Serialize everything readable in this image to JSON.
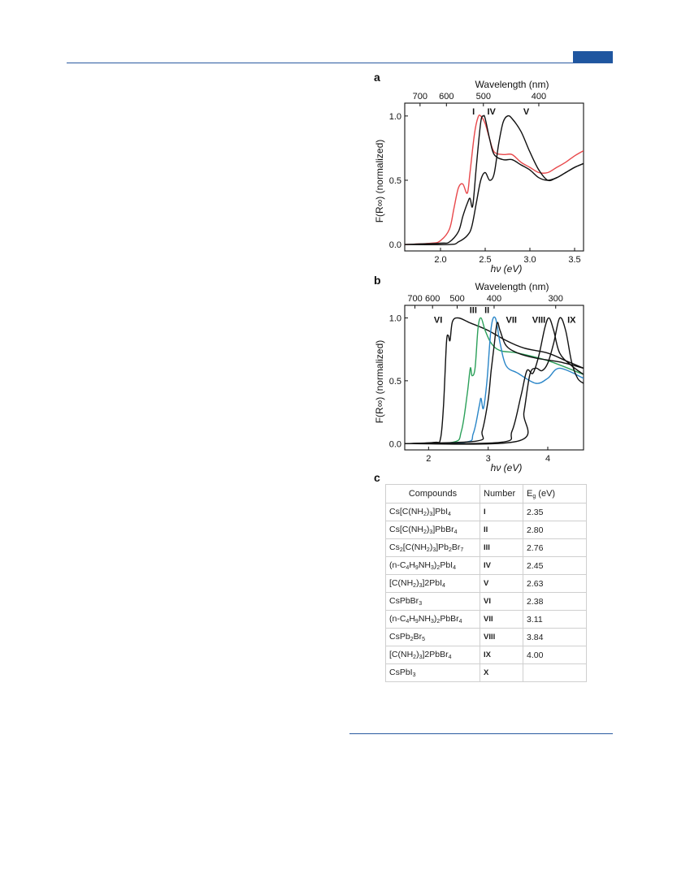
{
  "figure": {
    "panel_a": {
      "letter": "a",
      "top_axis_label": "Wavelength (nm)",
      "top_ticks": [
        "700",
        "600",
        "500",
        "400"
      ],
      "ylabel": "F(R∞) (normalized)",
      "xlabel": "hν (eV)",
      "x_ticks": [
        "2.0",
        "2.5",
        "3.0",
        "3.5"
      ],
      "y_ticks": [
        "0.0",
        "0.5",
        "1.0"
      ],
      "curve_labels": [
        "I",
        "IV",
        "V"
      ]
    },
    "panel_b": {
      "letter": "b",
      "top_axis_label": "Wavelength (nm)",
      "top_ticks": [
        "700",
        "600",
        "500",
        "400",
        "300"
      ],
      "ylabel": "F(R∞) (normalized)",
      "xlabel": "hν (eV)",
      "x_ticks": [
        "2",
        "3",
        "4"
      ],
      "y_ticks": [
        "0.0",
        "0.5",
        "1.0"
      ],
      "curve_labels": [
        "VI",
        "III",
        "II",
        "VII",
        "VIII",
        "IX"
      ]
    },
    "panel_c": {
      "letter": "c",
      "headers": [
        "Compounds",
        "Number",
        "E_g (eV)"
      ],
      "rows": [
        {
          "compound": "Cs[C(NH2)3]PbI4",
          "number": "I",
          "eg": "2.35"
        },
        {
          "compound": "Cs[C(NH2)3]PbBr4",
          "number": "II",
          "eg": "2.80"
        },
        {
          "compound": "Cs2[C(NH2)3]Pb2Br7",
          "number": "III",
          "eg": "2.76"
        },
        {
          "compound": "(n-C4H9NH3)2PbI4",
          "number": "IV",
          "eg": "2.45"
        },
        {
          "compound": "[C(NH2)3]2PbI4",
          "number": "V",
          "eg": "2.63"
        },
        {
          "compound": "CsPbBr3",
          "number": "VI",
          "eg": "2.38"
        },
        {
          "compound": "(n-C4H9NH3)2PbBr4",
          "number": "VII",
          "eg": "3.11"
        },
        {
          "compound": "CsPb2Br5",
          "number": "VIII",
          "eg": "3.84"
        },
        {
          "compound": "[C(NH2)3]2PbBr4",
          "number": "IX",
          "eg": "4.00"
        },
        {
          "compound": "CsPbI3",
          "number": "X",
          "eg": ""
        }
      ]
    }
  },
  "chart_data": [
    {
      "type": "line",
      "panel": "a",
      "xlabel": "hν (eV)",
      "ylabel": "F(R∞) (normalized)",
      "xlim": [
        1.6,
        3.6
      ],
      "ylim": [
        -0.05,
        1.1
      ],
      "top_axis": {
        "label": "Wavelength (nm)",
        "ticks_nm": [
          700,
          600,
          500,
          400
        ]
      },
      "series": [
        {
          "name": "I",
          "color": "#e8484b",
          "x": [
            1.6,
            1.9,
            2.0,
            2.1,
            2.15,
            2.2,
            2.25,
            2.3,
            2.33,
            2.38,
            2.42,
            2.45,
            2.5,
            2.55,
            2.6,
            2.7,
            2.8,
            2.9,
            3.0,
            3.1,
            3.2,
            3.3,
            3.4,
            3.5,
            3.6
          ],
          "y": [
            0.0,
            0.01,
            0.03,
            0.12,
            0.28,
            0.44,
            0.47,
            0.4,
            0.56,
            0.86,
            0.99,
            1.0,
            0.94,
            0.82,
            0.72,
            0.7,
            0.7,
            0.64,
            0.6,
            0.56,
            0.56,
            0.6,
            0.64,
            0.69,
            0.73
          ]
        },
        {
          "name": "IV",
          "color": "#111111",
          "x": [
            1.6,
            2.0,
            2.1,
            2.2,
            2.25,
            2.3,
            2.33,
            2.36,
            2.4,
            2.45,
            2.48,
            2.5,
            2.55,
            2.6,
            2.7,
            2.8,
            2.9,
            3.0,
            3.1,
            3.2,
            3.3,
            3.4,
            3.5,
            3.6
          ],
          "y": [
            0.0,
            0.01,
            0.02,
            0.1,
            0.22,
            0.32,
            0.36,
            0.3,
            0.6,
            0.95,
            1.0,
            0.98,
            0.82,
            0.7,
            0.66,
            0.66,
            0.62,
            0.58,
            0.52,
            0.5,
            0.52,
            0.56,
            0.6,
            0.63
          ]
        },
        {
          "name": "V",
          "color": "#111111",
          "x": [
            1.6,
            2.1,
            2.2,
            2.3,
            2.35,
            2.4,
            2.45,
            2.5,
            2.55,
            2.6,
            2.65,
            2.7,
            2.75,
            2.8,
            2.9,
            3.0,
            3.1,
            3.2,
            3.3,
            3.4,
            3.5,
            3.6
          ],
          "y": [
            0.0,
            0.0,
            0.02,
            0.07,
            0.14,
            0.32,
            0.5,
            0.56,
            0.5,
            0.55,
            0.78,
            0.95,
            1.0,
            0.98,
            0.88,
            0.72,
            0.58,
            0.5,
            0.52,
            0.56,
            0.6,
            0.63
          ]
        }
      ]
    },
    {
      "type": "line",
      "panel": "b",
      "xlabel": "hν (eV)",
      "ylabel": "F(R∞) (normalized)",
      "xlim": [
        1.6,
        4.6
      ],
      "ylim": [
        -0.05,
        1.1
      ],
      "top_axis": {
        "label": "Wavelength (nm)",
        "ticks_nm": [
          700,
          600,
          500,
          400,
          300
        ]
      },
      "series": [
        {
          "name": "VI",
          "color": "#111111",
          "x": [
            1.6,
            2.1,
            2.2,
            2.25,
            2.3,
            2.33,
            2.36,
            2.4,
            2.5,
            2.7,
            3.0,
            3.3,
            3.6,
            4.0,
            4.3,
            4.6
          ],
          "y": [
            0.0,
            0.01,
            0.04,
            0.3,
            0.8,
            0.86,
            0.82,
            0.97,
            1.0,
            0.96,
            0.9,
            0.82,
            0.76,
            0.72,
            0.66,
            0.6
          ]
        },
        {
          "name": "III",
          "color": "#2ca05a",
          "x": [
            1.6,
            2.4,
            2.55,
            2.65,
            2.7,
            2.73,
            2.78,
            2.83,
            2.88,
            2.95,
            3.05,
            3.2,
            3.5,
            4.0,
            4.6
          ],
          "y": [
            0.0,
            0.01,
            0.1,
            0.4,
            0.6,
            0.54,
            0.6,
            0.92,
            1.0,
            0.9,
            0.8,
            0.74,
            0.72,
            0.66,
            0.55
          ]
        },
        {
          "name": "II",
          "color": "#2a86c8",
          "x": [
            1.6,
            2.6,
            2.75,
            2.85,
            2.88,
            2.92,
            2.98,
            3.05,
            3.12,
            3.2,
            3.3,
            3.5,
            3.8,
            4.0,
            4.2,
            4.6
          ],
          "y": [
            0.0,
            0.01,
            0.08,
            0.3,
            0.36,
            0.28,
            0.5,
            0.92,
            1.0,
            0.8,
            0.62,
            0.56,
            0.48,
            0.52,
            0.6,
            0.52
          ]
        },
        {
          "name": "VII",
          "color": "#111111",
          "x": [
            1.6,
            2.8,
            2.9,
            3.0,
            3.05,
            3.1,
            3.15,
            3.2,
            3.3,
            3.5,
            3.8,
            4.2,
            4.6
          ],
          "y": [
            0.0,
            0.02,
            0.1,
            0.35,
            0.58,
            0.78,
            0.96,
            0.9,
            0.78,
            0.72,
            0.68,
            0.65,
            0.6
          ]
        },
        {
          "name": "VIII",
          "color": "#111111",
          "x": [
            1.6,
            3.2,
            3.4,
            3.55,
            3.65,
            3.75,
            3.85,
            3.95,
            4.02,
            4.1,
            4.2,
            4.4,
            4.6
          ],
          "y": [
            0.0,
            0.01,
            0.1,
            0.38,
            0.58,
            0.56,
            0.7,
            0.92,
            1.0,
            0.9,
            0.72,
            0.62,
            0.55
          ]
        },
        {
          "name": "IX",
          "color": "#111111",
          "x": [
            1.6,
            3.5,
            3.6,
            3.7,
            3.8,
            3.9,
            4.0,
            4.1,
            4.2,
            4.3,
            4.4,
            4.5,
            4.6
          ],
          "y": [
            0.0,
            0.02,
            0.25,
            0.55,
            0.6,
            0.58,
            0.64,
            0.8,
            1.0,
            0.9,
            0.65,
            0.52,
            0.48
          ]
        }
      ]
    }
  ]
}
